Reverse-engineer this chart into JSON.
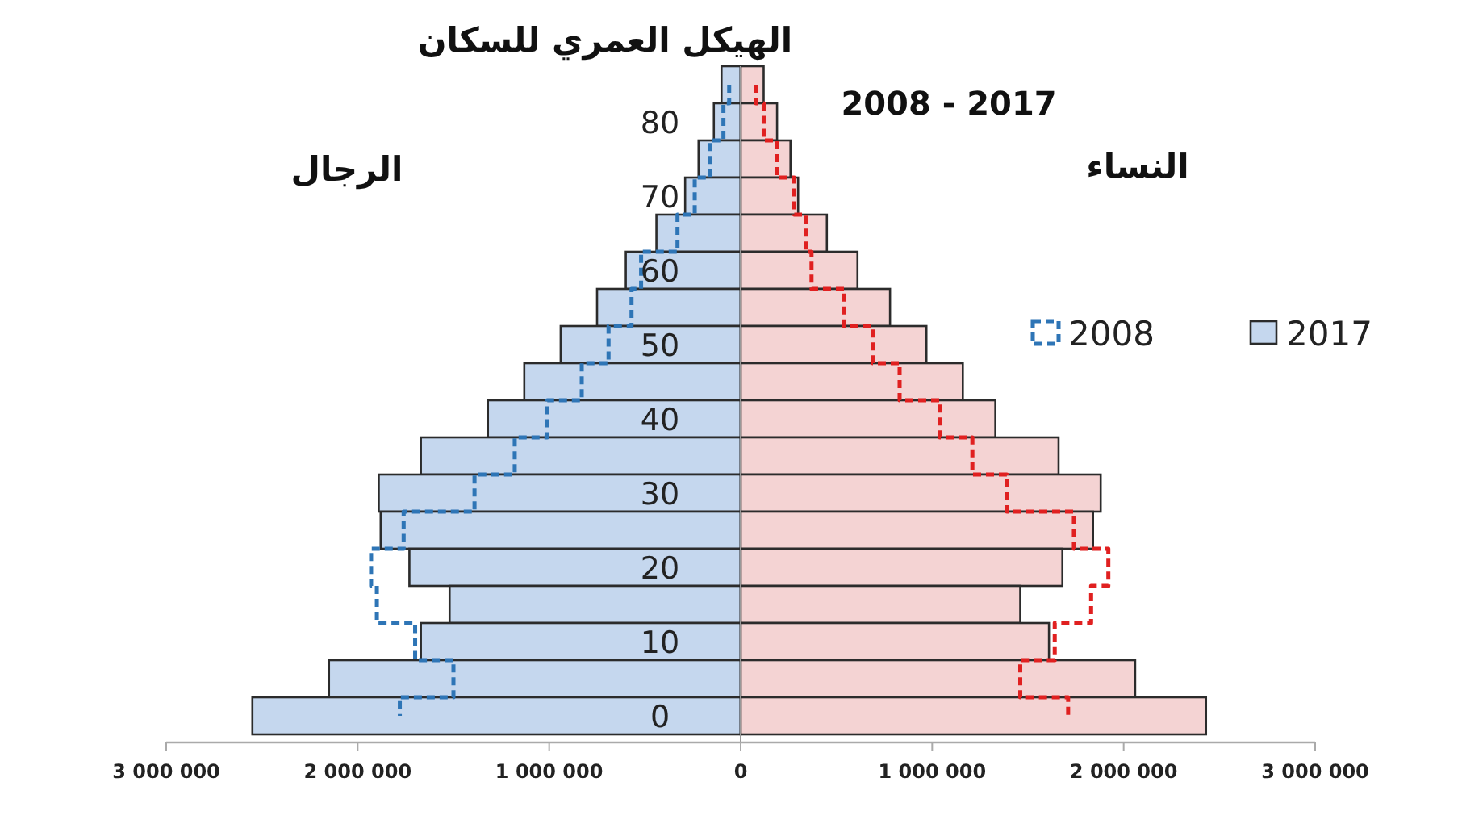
{
  "chart_data": {
    "type": "bar",
    "orientation": "horizontal",
    "title": "الهيكل العمري للسكان",
    "subtitle": "2008 - 2017",
    "annotations": [
      "الرجال",
      "النساء"
    ],
    "categories": [
      null,
      "80",
      null,
      "70",
      null,
      "60",
      null,
      "50",
      null,
      "40",
      null,
      "30",
      null,
      "20",
      null,
      "10",
      null,
      "0"
    ],
    "xlim": [
      -3000000,
      3000000
    ],
    "xticks": [
      {
        "value": -3000000,
        "label": "3 000 000"
      },
      {
        "value": -2000000,
        "label": "2 000 000"
      },
      {
        "value": -1000000,
        "label": "1 000 000"
      },
      0,
      {
        "value": 1000000,
        "label": "1 000 000"
      },
      {
        "value": 2000000,
        "label": "2 000 000"
      },
      {
        "value": 3000000,
        "label": "3 000 000"
      }
    ],
    "legend": "right",
    "grid": false,
    "stacked": true,
    "series": [
      {
        "name": "2008",
        "type": "step",
        "color": "#2e75b6",
        "line_style": "dashed",
        "values": [
          -60000,
          -90000,
          -160000,
          -240000,
          -330000,
          -520000,
          -570000,
          -690000,
          -830000,
          -1010000,
          -1180000,
          -1390000,
          -1760000,
          -1930000,
          -1900000,
          -1700000,
          -1500000,
          -1780000
        ]
      },
      {
        "color": "#e02020",
        "type": "step",
        "line_style": "dashed",
        "values": [
          80000,
          120000,
          190000,
          280000,
          340000,
          370000,
          540000,
          690000,
          830000,
          1040000,
          1210000,
          1390000,
          1740000,
          1920000,
          1830000,
          1640000,
          1460000,
          1710000
        ]
      },
      {
        "name": "2017",
        "color": "#c5d7ee",
        "line_style": "solid",
        "values": [
          -100000,
          -140000,
          -220000,
          -290000,
          -440000,
          -600000,
          -750000,
          -940000,
          -1130000,
          -1320000,
          -1670000,
          -1890000,
          -1880000,
          -1730000,
          -1520000,
          -1670000,
          -2150000,
          -2550000
        ]
      },
      {
        "color": "#f4d3d3",
        "line_style": "solid",
        "values": [
          120000,
          190000,
          260000,
          300000,
          450000,
          610000,
          780000,
          970000,
          1160000,
          1330000,
          1660000,
          1880000,
          1840000,
          1680000,
          1460000,
          1610000,
          2060000,
          2430000
        ]
      }
    ]
  }
}
